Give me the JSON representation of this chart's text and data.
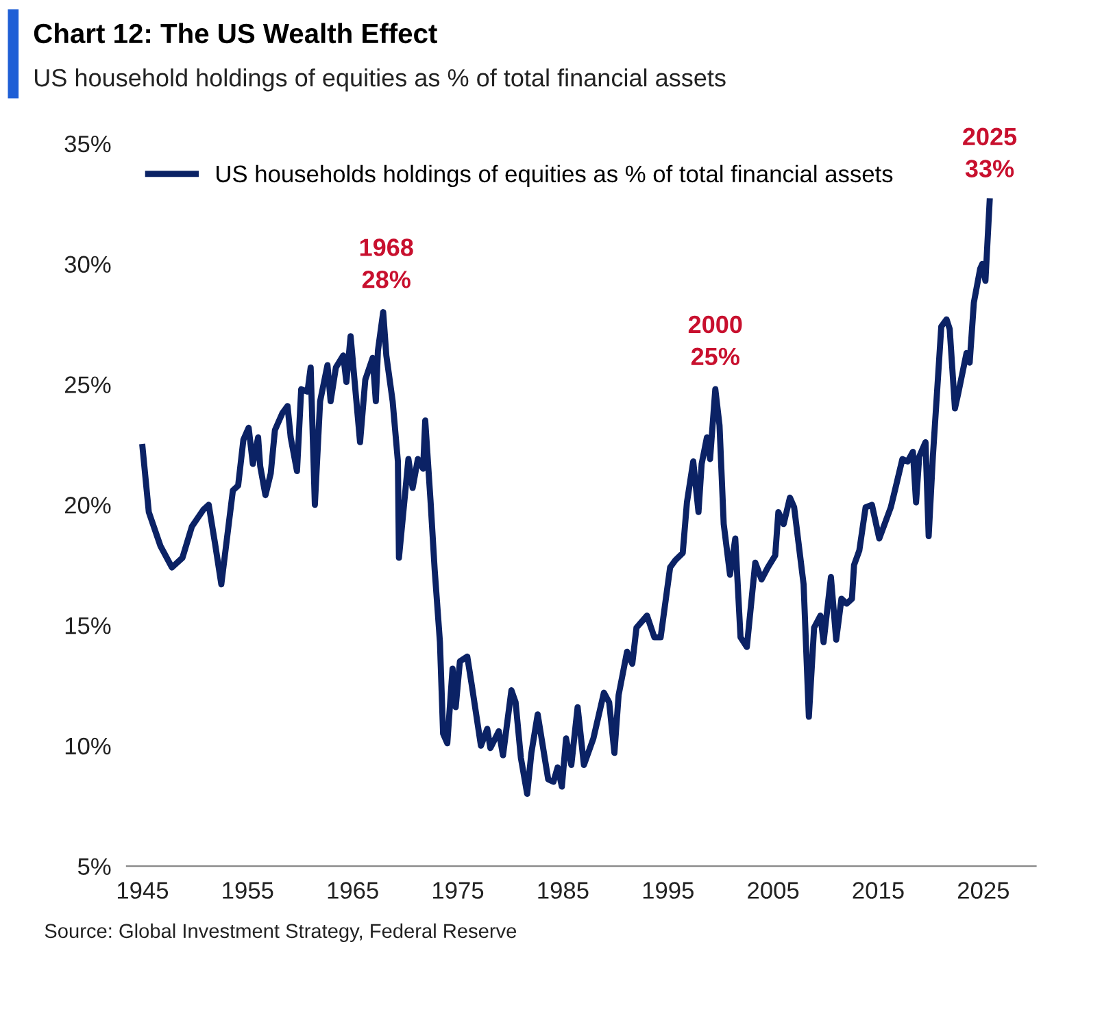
{
  "chart_data": {
    "type": "line",
    "title": "Chart 12: The US Wealth Effect",
    "subtitle": "US household holdings of equities as % of total financial assets",
    "x": [
      1945.0,
      1945.6,
      1946.7,
      1947.8,
      1948.8,
      1949.7,
      1950.8,
      1951.3,
      1951.9,
      1952.5,
      1953.6,
      1954.1,
      1954.6,
      1955.1,
      1955.5,
      1956.0,
      1956.2,
      1956.7,
      1957.2,
      1957.6,
      1958.3,
      1958.8,
      1959.1,
      1959.7,
      1960.1,
      1960.7,
      1961.0,
      1961.4,
      1961.9,
      1962.6,
      1962.9,
      1963.4,
      1964.1,
      1964.4,
      1964.8,
      1965.7,
      1966.2,
      1966.9,
      1967.2,
      1967.4,
      1967.9,
      1968.2,
      1968.8,
      1969.3,
      1969.4,
      1970.3,
      1970.7,
      1971.2,
      1971.7,
      1971.9,
      1972.4,
      1972.8,
      1973.3,
      1973.6,
      1974.0,
      1974.5,
      1974.8,
      1975.2,
      1975.9,
      1976.3,
      1977.2,
      1977.8,
      1978.1,
      1978.9,
      1979.3,
      1980.1,
      1980.5,
      1981.0,
      1981.6,
      1982.0,
      1982.6,
      1983.6,
      1984.1,
      1984.5,
      1984.9,
      1985.3,
      1985.8,
      1986.4,
      1987.0,
      1987.9,
      1988.9,
      1989.4,
      1989.9,
      1990.3,
      1991.1,
      1991.6,
      1992.0,
      1993.0,
      1993.7,
      1994.3,
      1995.2,
      1995.7,
      1996.4,
      1996.8,
      1997.4,
      1997.9,
      1998.2,
      1998.7,
      1999.0,
      1999.5,
      1999.9,
      2000.3,
      2000.9,
      2001.4,
      2001.9,
      2002.5,
      2003.3,
      2003.9,
      2004.5,
      2005.2,
      2005.5,
      2006.0,
      2006.6,
      2007.0,
      2007.9,
      2008.4,
      2008.9,
      2009.5,
      2009.8,
      2010.5,
      2011.0,
      2011.5,
      2012.0,
      2012.5,
      2012.7,
      2013.2,
      2013.8,
      2014.4,
      2015.1,
      2016.2,
      2016.7,
      2017.3,
      2017.8,
      2018.3,
      2018.6,
      2018.9,
      2019.5,
      2019.8,
      2020.2,
      2021.0,
      2021.5,
      2021.8,
      2022.3,
      2022.6,
      2023.4,
      2023.7,
      2024.1,
      2024.7,
      2024.9,
      2025.2,
      2025.6
    ],
    "series": [
      {
        "name": "US households holdings of equities as % of total financial assets",
        "color": "#0b2265",
        "values": [
          22.4,
          19.7,
          18.3,
          17.4,
          17.8,
          19.1,
          19.8,
          20.0,
          18.4,
          16.7,
          20.6,
          20.8,
          22.7,
          23.2,
          21.7,
          22.8,
          21.6,
          20.4,
          21.3,
          23.1,
          23.8,
          24.1,
          22.8,
          21.4,
          24.8,
          24.7,
          25.7,
          20.0,
          24.3,
          25.8,
          24.3,
          25.7,
          26.2,
          25.1,
          27.0,
          22.6,
          25.2,
          26.1,
          24.3,
          26.4,
          28.0,
          26.2,
          24.3,
          21.8,
          17.8,
          21.9,
          20.7,
          21.9,
          21.5,
          23.5,
          20.2,
          17.3,
          14.3,
          10.5,
          10.1,
          13.2,
          11.6,
          13.5,
          13.7,
          12.6,
          10.0,
          10.7,
          9.9,
          10.6,
          9.6,
          12.3,
          11.8,
          9.5,
          8.0,
          9.7,
          11.3,
          8.6,
          8.5,
          9.1,
          8.3,
          10.3,
          9.2,
          11.6,
          9.2,
          10.3,
          12.2,
          11.8,
          9.7,
          12.1,
          13.9,
          13.4,
          14.9,
          15.4,
          14.5,
          14.5,
          17.4,
          17.7,
          18.0,
          20.1,
          21.8,
          19.7,
          21.7,
          22.8,
          21.9,
          24.8,
          23.3,
          19.2,
          17.1,
          18.6,
          14.5,
          14.1,
          17.6,
          16.9,
          17.4,
          17.9,
          19.7,
          19.2,
          20.3,
          19.9,
          16.7,
          11.2,
          14.9,
          15.4,
          14.3,
          17.0,
          14.4,
          16.1,
          15.9,
          16.1,
          17.5,
          18.1,
          19.9,
          20.0,
          18.6,
          19.9,
          20.8,
          21.9,
          21.8,
          22.2,
          20.1,
          22.0,
          22.6,
          18.7,
          22.0,
          27.4,
          27.7,
          27.3,
          24.0,
          24.6,
          26.3,
          25.9,
          28.4,
          29.8,
          30.0,
          29.3,
          32.6
        ]
      }
    ],
    "xlim": [
      1943.5,
      2030
    ],
    "xticks": [
      1945,
      1955,
      1965,
      1975,
      1985,
      1995,
      2005,
      2015,
      2025
    ],
    "ylim": [
      5,
      35
    ],
    "yticks": [
      {
        "value": 5,
        "label": "5%"
      },
      {
        "value": 10,
        "label": "10%"
      },
      {
        "value": 15,
        "label": "15%"
      },
      {
        "value": 20,
        "label": "20%"
      },
      {
        "value": 25,
        "label": "25%"
      },
      {
        "value": 30,
        "label": "30%"
      },
      {
        "value": 35,
        "label": "35%"
      }
    ],
    "grid": false,
    "legend": "top left",
    "marker": "none",
    "line_style": "solid",
    "annotations": [
      {
        "text": "1968\n28%",
        "x": 1968.2,
        "y": 28.0
      },
      {
        "text": "2000\n25%",
        "x": 1999.5,
        "y": 24.8
      },
      {
        "text": "2025\n33%",
        "x": 2025.6,
        "y": 32.6
      },
      "Source: Global Investment Strategy, Federal Reserve"
    ]
  }
}
